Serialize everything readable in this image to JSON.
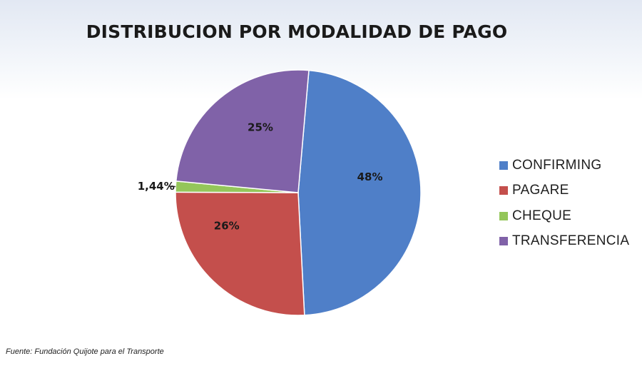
{
  "chart_data": {
    "type": "pie",
    "title": "DISTRIBUCION POR MODALIDAD DE PAGO",
    "slices": [
      {
        "name": "CONFIRMING",
        "value": 48,
        "label": "48%",
        "color": "#4f7fc8"
      },
      {
        "name": "PAGARE",
        "value": 26,
        "label": "26%",
        "color": "#c44f4c"
      },
      {
        "name": "CHEQUE",
        "value": 1.44,
        "label": "1,44%",
        "color": "#94c65a"
      },
      {
        "name": "TRANSFERENCIA",
        "value": 25,
        "label": "25%",
        "color": "#8062a8"
      }
    ],
    "legend_position": "right",
    "source": "Fuente: Fundación Quijote para el Transporte"
  }
}
